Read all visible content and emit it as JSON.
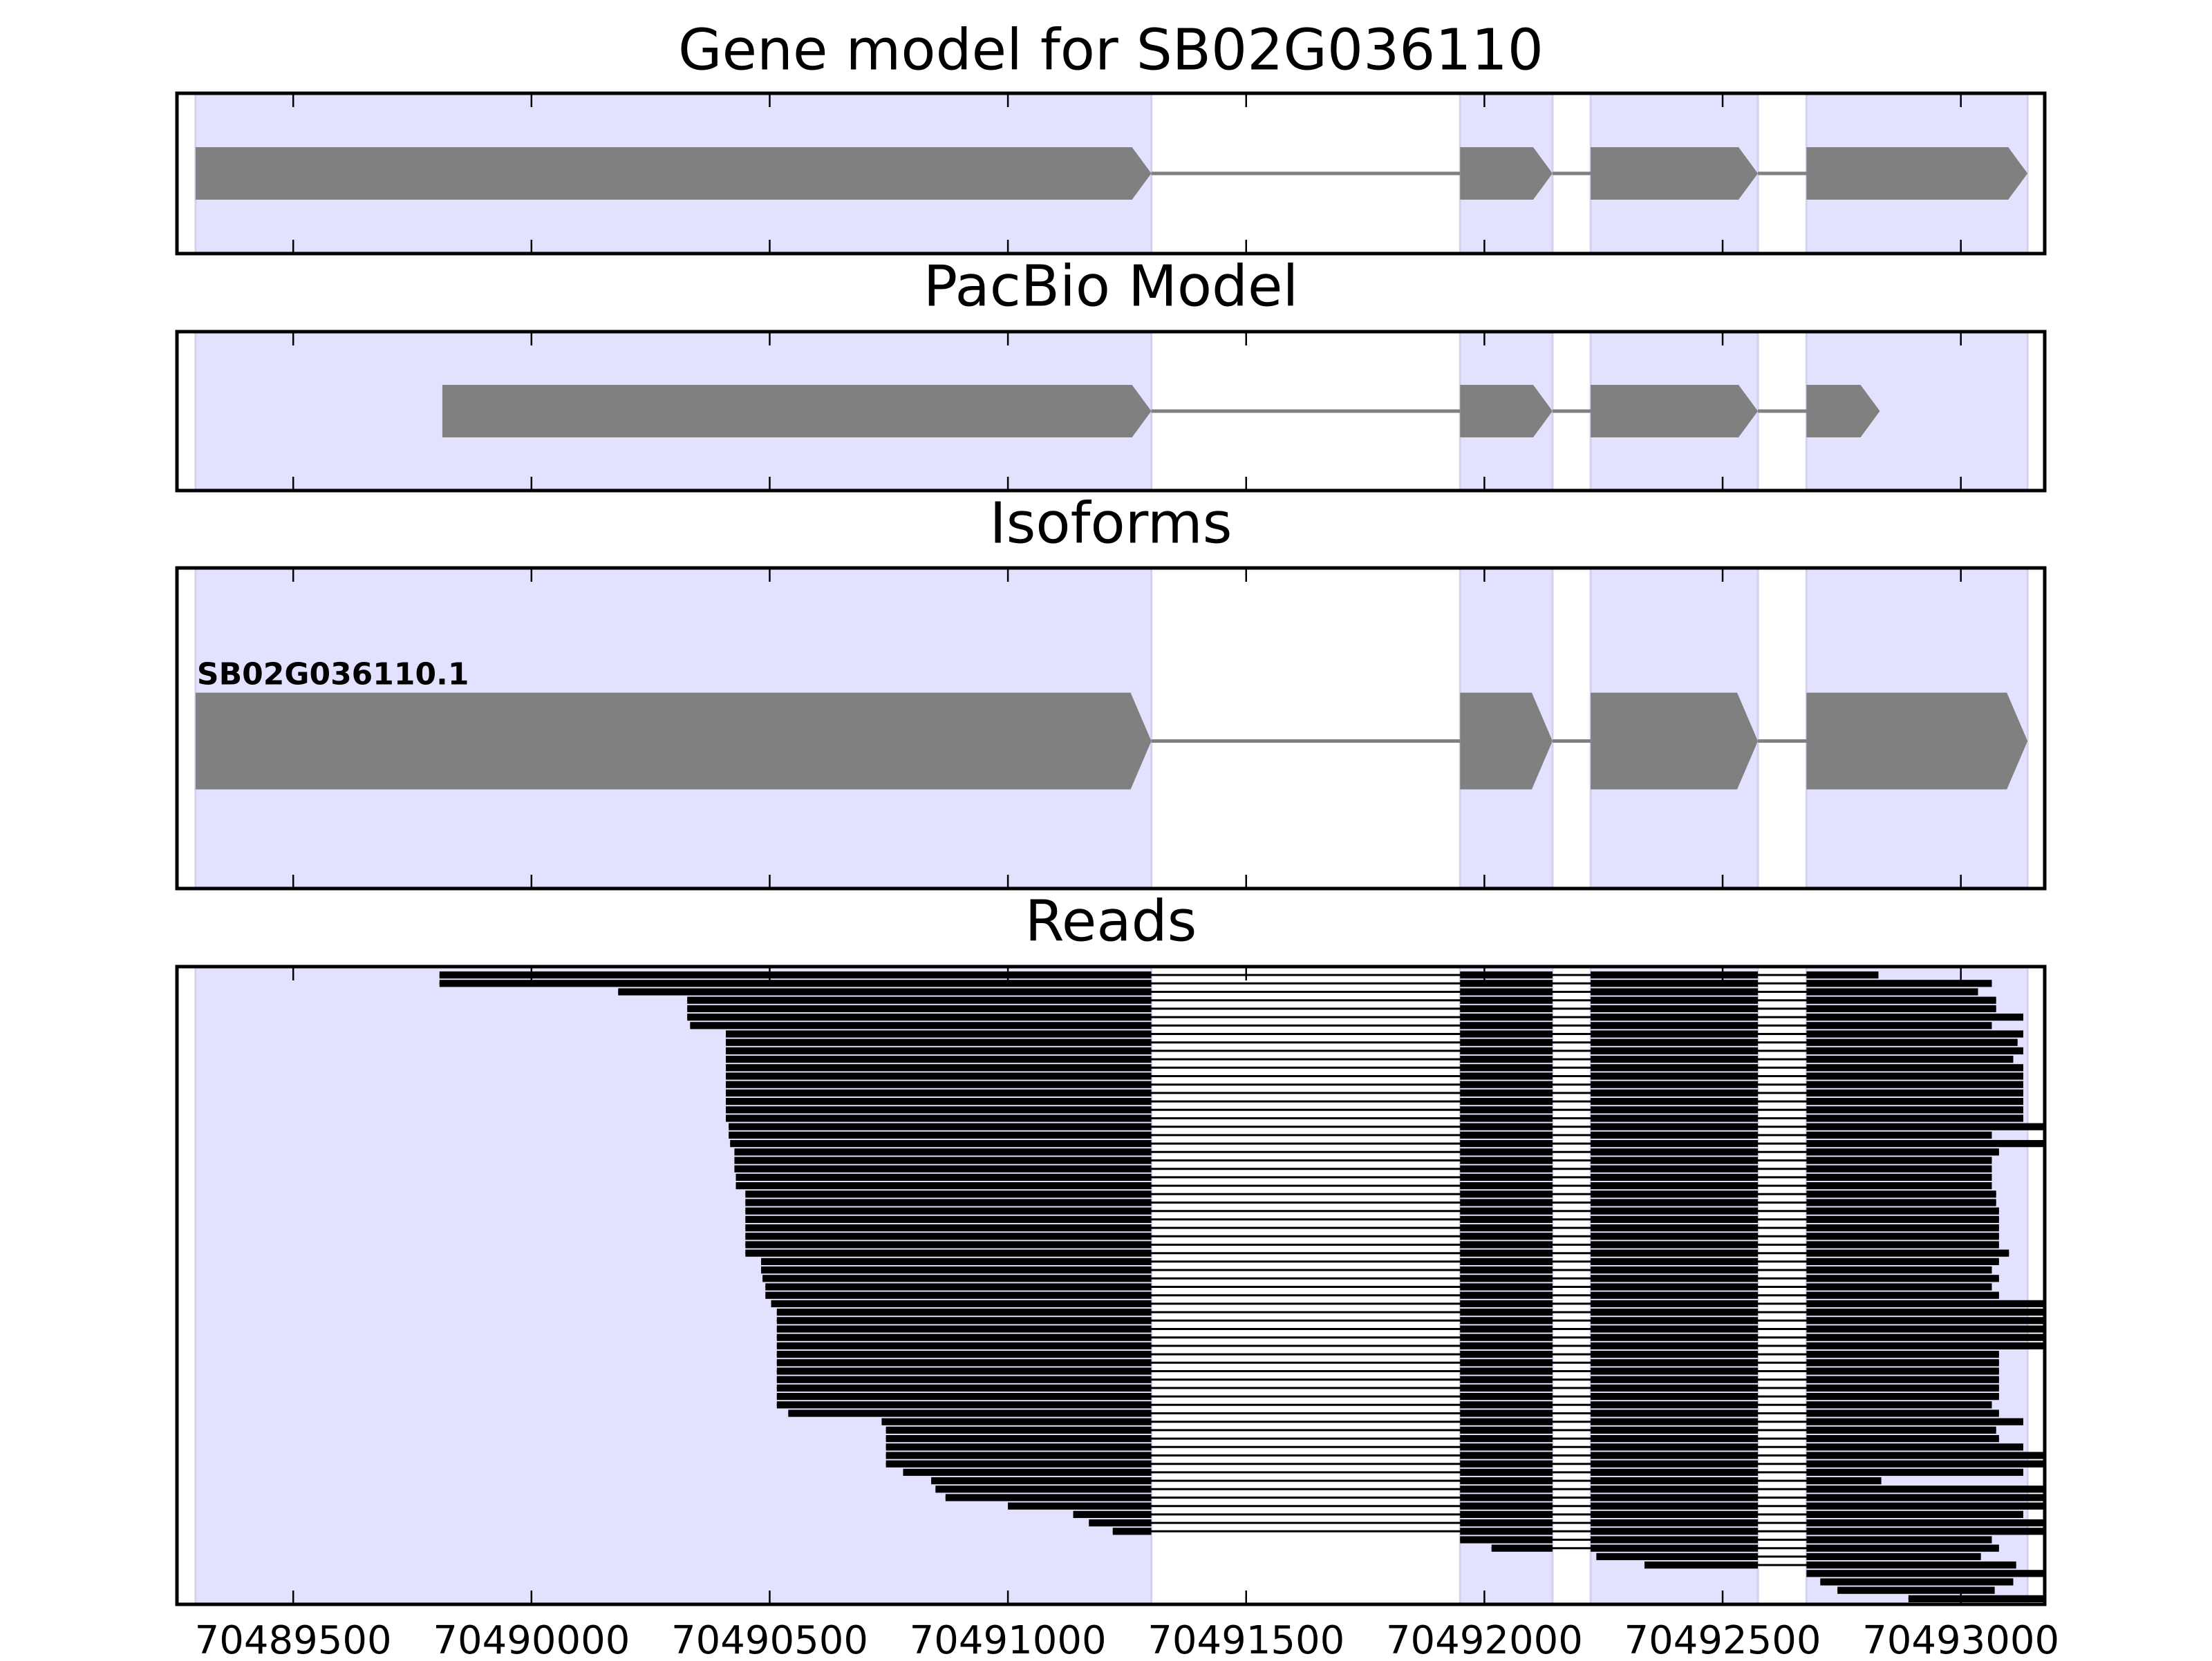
{
  "chart_data": [
    {
      "type": "gene",
      "title": "Gene model for SB02G036110",
      "exons": [
        [
          70489295,
          70491301
        ],
        [
          70491949,
          70492143
        ],
        [
          70492223,
          70492574
        ],
        [
          70492676,
          70493140
        ]
      ],
      "xlim": [
        70489256,
        70493176
      ],
      "xticks": [
        70489500,
        70490000,
        70490500,
        70491000,
        70491500,
        70492000,
        70492500,
        70493000
      ]
    },
    {
      "type": "gene",
      "title": "PacBio Model",
      "exons": [
        [
          70489813,
          70491301
        ],
        [
          70491949,
          70492143
        ],
        [
          70492223,
          70492574
        ],
        [
          70492676,
          70492830
        ]
      ],
      "xlim": [
        70489256,
        70493176
      ],
      "xticks": [
        70489500,
        70490000,
        70490500,
        70491000,
        70491500,
        70492000,
        70492500,
        70493000
      ]
    },
    {
      "type": "isoform",
      "title": "Isoforms",
      "label": "SB02G036110.1",
      "exons": [
        [
          70489295,
          70491301
        ],
        [
          70491949,
          70492143
        ],
        [
          70492223,
          70492574
        ],
        [
          70492676,
          70493140
        ]
      ],
      "xlim": [
        70489256,
        70493176
      ],
      "xticks": [
        70489500,
        70490000,
        70490500,
        70491000,
        70491500,
        70492000,
        70492500,
        70493000
      ]
    },
    {
      "type": "reads",
      "title": "Reads",
      "reads": [
        [
          70489807,
          70492827
        ],
        [
          70489807,
          70493065
        ],
        [
          70490182,
          70493036
        ],
        [
          70490327,
          70493074
        ],
        [
          70490327,
          70493074
        ],
        [
          70490327,
          70493131
        ],
        [
          70490333,
          70493065
        ],
        [
          70490408,
          70493131
        ],
        [
          70490408,
          70493119
        ],
        [
          70490408,
          70493131
        ],
        [
          70490408,
          70493110
        ],
        [
          70490408,
          70493131
        ],
        [
          70490408,
          70493131
        ],
        [
          70490408,
          70493131
        ],
        [
          70490408,
          70493131
        ],
        [
          70490408,
          70493131
        ],
        [
          70490408,
          70493131
        ],
        [
          70490408,
          70493131
        ],
        [
          70490414,
          70493176
        ],
        [
          70490414,
          70493065
        ],
        [
          70490417,
          70493176
        ],
        [
          70490426,
          70493080
        ],
        [
          70490426,
          70493065
        ],
        [
          70490426,
          70493065
        ],
        [
          70490429,
          70493065
        ],
        [
          70490429,
          70493065
        ],
        [
          70490449,
          70493074
        ],
        [
          70490449,
          70493074
        ],
        [
          70490449,
          70493080
        ],
        [
          70490449,
          70493080
        ],
        [
          70490449,
          70493080
        ],
        [
          70490449,
          70493080
        ],
        [
          70490449,
          70493080
        ],
        [
          70490449,
          70493101
        ],
        [
          70490482,
          70493080
        ],
        [
          70490482,
          70493065
        ],
        [
          70490485,
          70493080
        ],
        [
          70490491,
          70493065
        ],
        [
          70490491,
          70493080
        ],
        [
          70490503,
          70493176
        ],
        [
          70490515,
          70493176
        ],
        [
          70490515,
          70493176
        ],
        [
          70490515,
          70493176
        ],
        [
          70490515,
          70493176
        ],
        [
          70490515,
          70493176
        ],
        [
          70490515,
          70493080
        ],
        [
          70490515,
          70493080
        ],
        [
          70490515,
          70493080
        ],
        [
          70490515,
          70493080
        ],
        [
          70490515,
          70493080
        ],
        [
          70490515,
          70493080
        ],
        [
          70490515,
          70493065
        ],
        [
          70490539,
          70493080
        ],
        [
          70490735,
          70493131
        ],
        [
          70490744,
          70493074
        ],
        [
          70490744,
          70493080
        ],
        [
          70490744,
          70493131
        ],
        [
          70490744,
          70493176
        ],
        [
          70490744,
          70493176
        ],
        [
          70490780,
          70493131
        ],
        [
          70490839,
          70492833
        ],
        [
          70490848,
          70493176
        ],
        [
          70490869,
          70493176
        ],
        [
          70491000,
          70493176
        ],
        [
          70491137,
          70493131
        ],
        [
          70491170,
          70493176
        ],
        [
          70491220,
          70493176
        ],
        [
          70491949,
          70493065
        ],
        [
          70492015,
          70493080
        ],
        [
          70492235,
          70493042
        ],
        [
          70492336,
          70493116
        ],
        [
          70492676,
          70493176
        ],
        [
          70492705,
          70493110
        ],
        [
          70492741,
          70493071
        ],
        [
          70492890,
          70493176
        ]
      ],
      "xlim": [
        70489256,
        70493176
      ],
      "xticks": [
        70489500,
        70490000,
        70490500,
        70491000,
        70491500,
        70492000,
        70492500,
        70493000
      ]
    }
  ]
}
